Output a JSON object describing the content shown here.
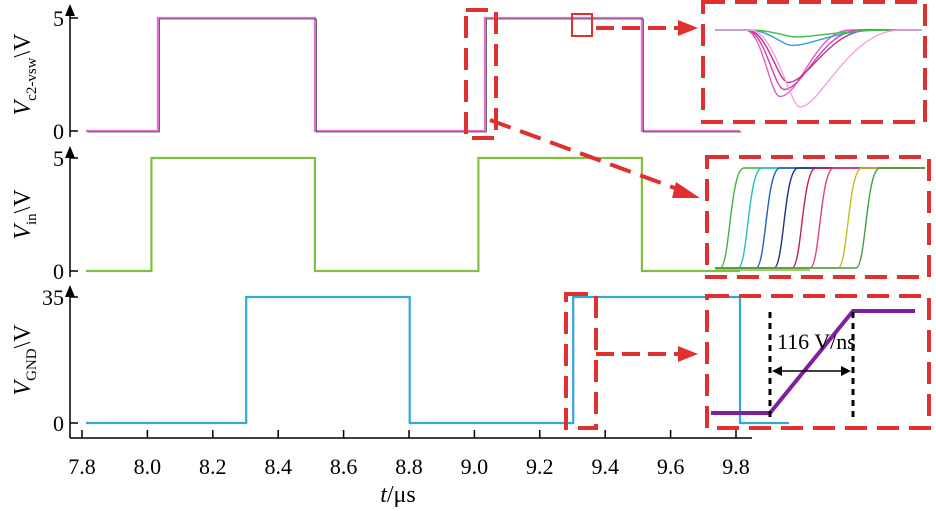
{
  "chart_data": [
    {
      "type": "line",
      "ylabel": {
        "main": "V",
        "sub": "c2-vsw",
        "unit": "\\V"
      },
      "yticks": [
        0,
        5
      ],
      "ylim": [
        0,
        5
      ],
      "series": [
        {
          "color": "#e070d0",
          "x": [
            7.8,
            8.02,
            8.02,
            8.5,
            8.5,
            9.02,
            9.02,
            9.5,
            9.5,
            9.8
          ],
          "y": [
            0,
            0,
            5,
            5,
            0,
            0,
            5,
            5,
            0,
            0
          ]
        }
      ],
      "inset": {
        "kind": "zoom-dip",
        "colors": [
          "#e060c0",
          "#d040b0",
          "#c03090",
          "#30a0e0",
          "#40c040",
          "#f0a0e0"
        ]
      }
    },
    {
      "type": "line",
      "ylabel": {
        "main": "V",
        "sub": "in",
        "unit": "\\V"
      },
      "yticks": [
        0,
        5
      ],
      "ylim": [
        0,
        5
      ],
      "series": [
        {
          "color": "#80c040",
          "x": [
            7.8,
            8.0,
            8.0,
            8.5,
            8.5,
            9.0,
            9.0,
            9.5,
            9.5,
            9.8
          ],
          "y": [
            0,
            0,
            5,
            5,
            0,
            0,
            5,
            5,
            0,
            0
          ]
        }
      ],
      "inset": {
        "kind": "zoom-edges",
        "colors": [
          "#40b040",
          "#20c0c0",
          "#2060c0",
          "#203080",
          "#c02050",
          "#e04080",
          "#c0c020",
          "#40a040"
        ]
      }
    },
    {
      "type": "line",
      "ylabel": {
        "main": "V",
        "sub": "GND",
        "unit": "\\V"
      },
      "yticks": [
        0,
        35
      ],
      "ylim": [
        0,
        35
      ],
      "series": [
        {
          "color": "#30a8d8",
          "x": [
            7.8,
            8.29,
            8.29,
            8.79,
            8.79,
            9.29,
            9.29,
            9.8,
            9.8,
            9.95
          ],
          "y": [
            0,
            0,
            35,
            35,
            0,
            0,
            35,
            35,
            0,
            0
          ]
        }
      ],
      "inset": {
        "kind": "zoom-ramp",
        "color": "#8020a0",
        "annotation": "116 V/ns"
      }
    }
  ],
  "xaxis": {
    "ticks": [
      7.8,
      8.0,
      8.2,
      8.4,
      8.6,
      8.8,
      9.0,
      9.2,
      9.4,
      9.6,
      9.8
    ],
    "xlim": [
      7.8,
      9.8
    ],
    "label_var": "t",
    "label_unit": "/μs"
  },
  "colors": {
    "zoom_box": "#e03030",
    "axis": "#000000"
  }
}
